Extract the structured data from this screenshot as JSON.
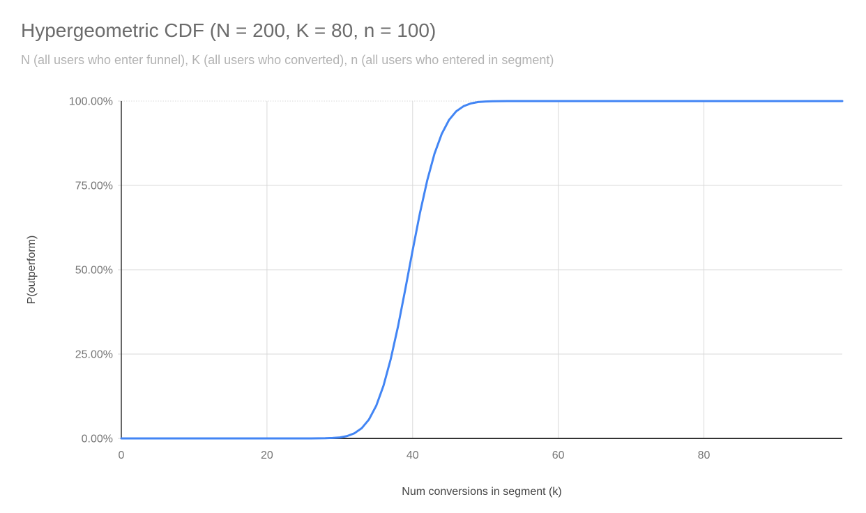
{
  "chart_data": {
    "type": "line",
    "title": "Hypergeometric CDF (N = 200, K = 80, n = 100)",
    "subtitle": "N (all users who enter funnel), K (all users who converted), n (all users who entered in segment)",
    "xlabel": "Num conversions in segment (k)",
    "ylabel": "P(outperform)",
    "xlim": [
      0,
      99
    ],
    "ylim": [
      0,
      1
    ],
    "grid": true,
    "legend_position": "none",
    "x_ticks": {
      "values": [
        0,
        20,
        40,
        60,
        80
      ],
      "labels": [
        "0",
        "20",
        "40",
        "60",
        "80"
      ]
    },
    "y_ticks": {
      "values": [
        0,
        0.25,
        0.5,
        0.75,
        1
      ],
      "labels": [
        "0.00%",
        "25.00%",
        "50.00%",
        "75.00%",
        "100.00%"
      ]
    },
    "colors": {
      "series_line": "#4285f4",
      "gridline": "#d9d9d9",
      "axis_line": "#333333",
      "tick_text": "#757575",
      "axis_title_text": "#424242",
      "title_text": "#6b6b6b",
      "subtitle_text": "#b2b2b2",
      "background": "#ffffff"
    },
    "series": [
      {
        "name": "P(outperform)",
        "x": [
          0,
          1,
          2,
          3,
          4,
          5,
          6,
          7,
          8,
          9,
          10,
          11,
          12,
          13,
          14,
          15,
          16,
          17,
          18,
          19,
          20,
          21,
          22,
          23,
          24,
          25,
          26,
          27,
          28,
          29,
          30,
          31,
          32,
          33,
          34,
          35,
          36,
          37,
          38,
          39,
          40,
          41,
          42,
          43,
          44,
          45,
          46,
          47,
          48,
          49,
          50,
          51,
          52,
          53,
          54,
          55,
          56,
          57,
          58,
          59,
          60,
          61,
          62,
          63,
          64,
          65,
          66,
          67,
          68,
          69,
          70,
          71,
          72,
          73,
          74,
          75,
          76,
          77,
          78,
          79,
          80,
          81,
          82,
          83,
          84,
          85,
          86,
          87,
          88,
          89,
          90,
          91,
          92,
          93,
          94,
          95,
          96,
          97,
          98,
          99
        ],
        "y": [
          0,
          0,
          0,
          0,
          0,
          0,
          0,
          0,
          0,
          0,
          0,
          0,
          0,
          0,
          0,
          0,
          0,
          0,
          0,
          0,
          0,
          0,
          0,
          0,
          0,
          1e-05,
          5e-05,
          0.00014,
          0.00043,
          0.00117,
          0.00297,
          0.00695,
          0.01504,
          0.03014,
          0.05604,
          0.09689,
          0.15615,
          0.23529,
          0.33256,
          0.44264,
          0.55736,
          0.66744,
          0.76471,
          0.84385,
          0.90311,
          0.94396,
          0.96986,
          0.98496,
          0.99305,
          0.99703,
          0.99883,
          0.99957,
          0.99986,
          0.99995,
          0.99999,
          1,
          1,
          1,
          1,
          1,
          1,
          1,
          1,
          1,
          1,
          1,
          1,
          1,
          1,
          1,
          1,
          1,
          1,
          1,
          1,
          1,
          1,
          1,
          1,
          1,
          1,
          1,
          1,
          1,
          1,
          1,
          1,
          1,
          1,
          1,
          1,
          1,
          1,
          1,
          1,
          1,
          1,
          1,
          1,
          1
        ]
      }
    ]
  }
}
